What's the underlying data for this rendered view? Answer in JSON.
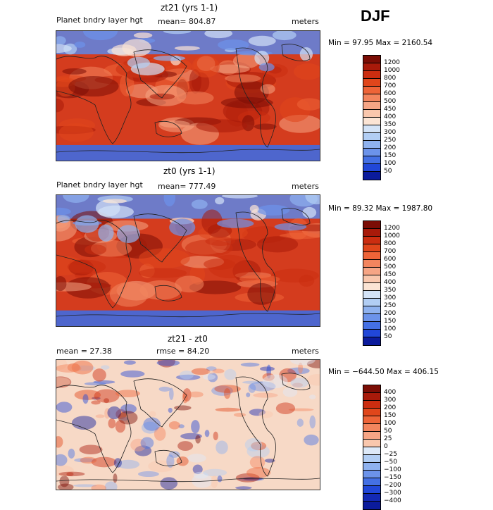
{
  "season": "DJF",
  "panels": [
    {
      "title": "zt21 (yrs 1-1)",
      "left_label": "Planet bndry layer hgt",
      "center_label": "mean= 804.87",
      "right_label": "meters",
      "minmax": "Min =  97.95 Max = 2160.54",
      "variant": "field",
      "colorbar": {
        "labels": [
          "1200",
          "1000",
          "800",
          "700",
          "600",
          "500",
          "450",
          "400",
          "350",
          "300",
          "250",
          "200",
          "150",
          "100",
          "50"
        ],
        "colors": [
          "#7b0d05",
          "#a81a0a",
          "#cb2d10",
          "#e0461b",
          "#ee6438",
          "#f3855e",
          "#f6a585",
          "#f9c7ad",
          "#fbe4d4",
          "#d3e3f7",
          "#b2cef4",
          "#8fb2ef",
          "#6c93ea",
          "#4470e4",
          "#2147d8",
          "#0b1b9c"
        ]
      }
    },
    {
      "title": "zt0 (yrs 1-1)",
      "left_label": "Planet bndry layer hgt",
      "center_label": "mean= 777.49",
      "right_label": "meters",
      "minmax": "Min =  89.32 Max = 1987.80",
      "variant": "field",
      "colorbar": {
        "labels": [
          "1200",
          "1000",
          "800",
          "700",
          "600",
          "500",
          "450",
          "400",
          "350",
          "300",
          "250",
          "200",
          "150",
          "100",
          "50"
        ],
        "colors": [
          "#7b0d05",
          "#a81a0a",
          "#cb2d10",
          "#e0461b",
          "#ee6438",
          "#f3855e",
          "#f6a585",
          "#f9c7ad",
          "#fbe4d4",
          "#d3e3f7",
          "#b2cef4",
          "#8fb2ef",
          "#6c93ea",
          "#4470e4",
          "#2147d8",
          "#0b1b9c"
        ]
      }
    },
    {
      "title": "zt21 - zt0",
      "left_label": "mean =   27.38",
      "center_label": "rmse =   84.20",
      "right_label": "meters",
      "minmax": "Min = −644.50 Max = 406.15",
      "variant": "diff",
      "colorbar": {
        "labels": [
          "400",
          "300",
          "200",
          "150",
          "100",
          "50",
          "25",
          "0",
          "−25",
          "−50",
          "−100",
          "−150",
          "−200",
          "−300",
          "−400"
        ],
        "colors": [
          "#7b0d05",
          "#a81a0a",
          "#cb2d10",
          "#e0461b",
          "#ee6438",
          "#f3855e",
          "#f6a585",
          "#f9c7ad",
          "#dde9f8",
          "#b2cef4",
          "#8fb2ef",
          "#6c93ea",
          "#4470e4",
          "#2147d8",
          "#1329b4",
          "#0b1b9c"
        ]
      }
    }
  ]
}
